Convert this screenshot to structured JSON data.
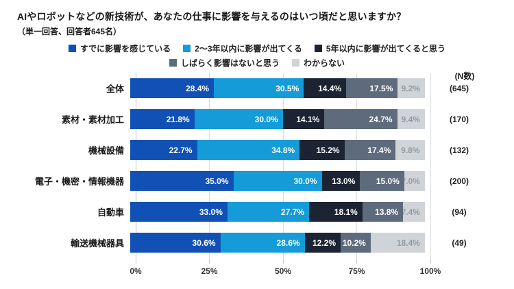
{
  "header": {
    "title": "AIやロボットなどの新技術が、あなたの仕事に影響を与えるのはいつ頃だと思いますか？",
    "subtitle": "（単一回答、回答者645名）"
  },
  "chart_data": {
    "type": "bar",
    "orientation": "horizontal",
    "stacked": true,
    "unit": "%",
    "xlim": [
      0,
      100
    ],
    "x_ticks": [
      "0%",
      "25%",
      "50%",
      "75%",
      "100%"
    ],
    "n_header": "(N数)",
    "categories": [
      "全体",
      "素材・素材加工",
      "機械設備",
      "電子・機密・情報機器",
      "自動車",
      "輸送機械器具"
    ],
    "n_values": [
      "(645)",
      "(170)",
      "(132)",
      "(200)",
      "(94)",
      "(49)"
    ],
    "series": [
      {
        "name": "すでに影響を感じている",
        "color": "#1151b5",
        "values": [
          28.4,
          21.8,
          22.7,
          35.0,
          33.0,
          30.6
        ]
      },
      {
        "name": "2〜3年以内に影響が出てくる",
        "color": "#149bd8",
        "values": [
          30.5,
          30.0,
          34.8,
          30.0,
          27.7,
          28.6
        ]
      },
      {
        "name": "5年以内に影響が出てくると思う",
        "color": "#1c2433",
        "values": [
          14.4,
          14.1,
          15.2,
          13.0,
          18.1,
          12.2
        ]
      },
      {
        "name": "しばらく影響はないと思う",
        "color": "#5e6b7d",
        "values": [
          17.5,
          24.7,
          17.4,
          15.0,
          13.8,
          10.2
        ]
      },
      {
        "name": "わからない",
        "color": "#d0d3d8",
        "label_color": "#959ba4",
        "values": [
          9.2,
          9.4,
          9.8,
          7.0,
          7.4,
          18.4
        ]
      }
    ],
    "legend_rows": [
      [
        0,
        1,
        2
      ],
      [
        3,
        4
      ]
    ],
    "colors": {
      "gridline": "#dcdddf",
      "zero_line": "#bfc1c4",
      "text": "#1a1a1a"
    }
  }
}
